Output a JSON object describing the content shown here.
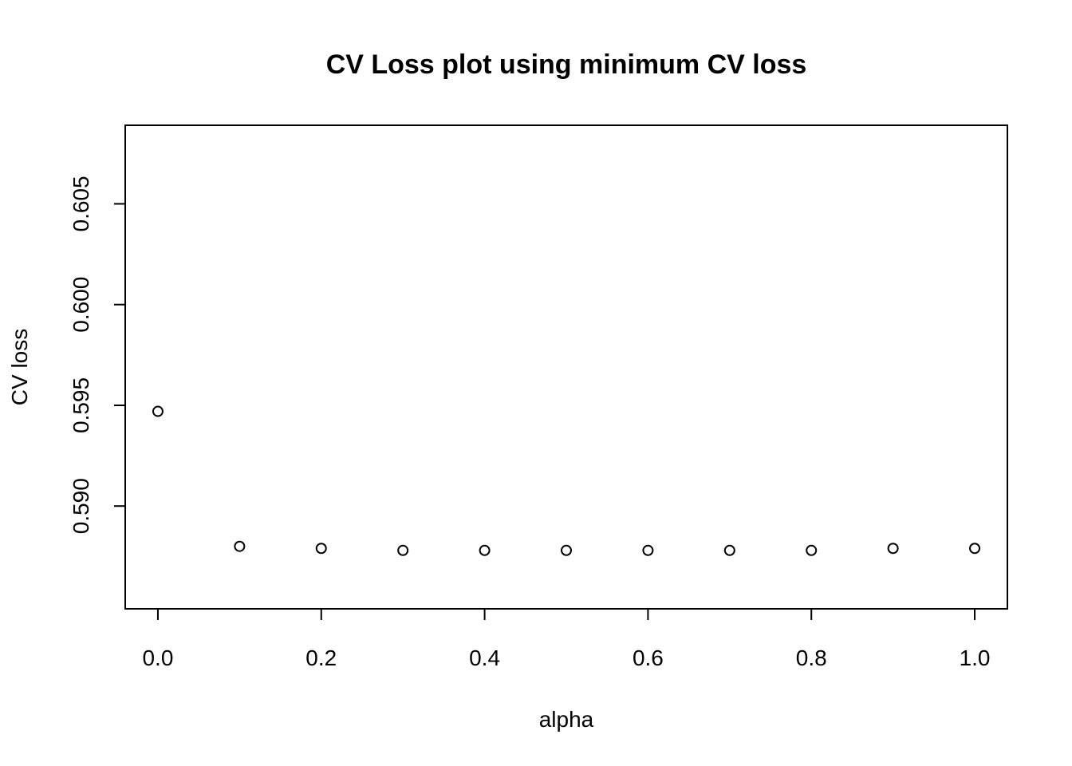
{
  "chart_data": {
    "type": "scatter",
    "title": "CV Loss plot using minimum CV loss",
    "xlabel": "alpha",
    "ylabel": "CV loss",
    "xlim": [
      -0.04,
      1.04
    ],
    "ylim": [
      0.5849,
      0.6089
    ],
    "x_ticks": [
      0.0,
      0.2,
      0.4,
      0.6,
      0.8,
      1.0
    ],
    "x_tick_labels": [
      "0.0",
      "0.2",
      "0.4",
      "0.6",
      "0.8",
      "1.0"
    ],
    "y_ticks": [
      0.59,
      0.595,
      0.6,
      0.605
    ],
    "y_tick_labels": [
      "0.590",
      "0.595",
      "0.600",
      "0.605"
    ],
    "grid": false,
    "marker": "open-circle",
    "x": [
      0.0,
      0.1,
      0.2,
      0.3,
      0.4,
      0.5,
      0.6,
      0.7,
      0.8,
      0.9,
      1.0
    ],
    "y": [
      0.5947,
      0.588,
      0.5879,
      0.5878,
      0.5878,
      0.5878,
      0.5878,
      0.5878,
      0.5878,
      0.5879,
      0.5879
    ]
  }
}
